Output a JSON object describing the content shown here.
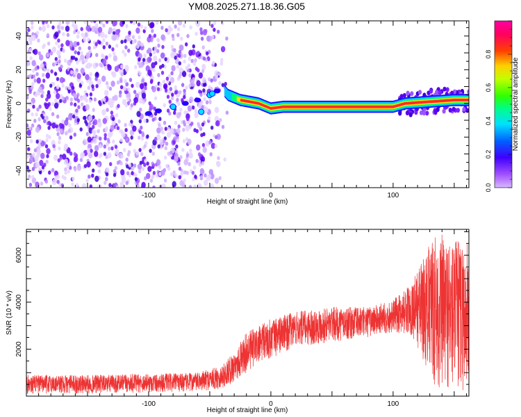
{
  "title": "YM08.2025.271.18.36.G05",
  "chart_data": [
    {
      "type": "heatmap",
      "title": "YM08.2025.271.18.36.G05",
      "xlabel": "Height of straight line (km)",
      "ylabel": "Frequency (Hz)",
      "xlim": [
        -200,
        162
      ],
      "ylim": [
        -50,
        49
      ],
      "xticks": [
        -100,
        0,
        100
      ],
      "yticks": [
        -40,
        -20,
        0,
        20,
        40
      ],
      "colorbar": {
        "label": "Normalized spectral amplitude",
        "range": [
          0.0,
          1.0
        ],
        "ticks": [
          0.0,
          0.2,
          0.4,
          0.6,
          0.8
        ],
        "colormap": "rainbow (purple-blue-cyan-green-yellow-red-magenta)"
      },
      "ridge": [
        {
          "x": -100,
          "y": -6
        },
        {
          "x": -80,
          "y": -2
        },
        {
          "x": -60,
          "y": 2
        },
        {
          "x": -50,
          "y": 5
        },
        {
          "x": -40,
          "y": 9
        },
        {
          "x": -35,
          "y": 5
        },
        {
          "x": -25,
          "y": 2
        },
        {
          "x": -10,
          "y": 0
        },
        {
          "x": 0,
          "y": -3
        },
        {
          "x": 10,
          "y": -2
        },
        {
          "x": 50,
          "y": -2
        },
        {
          "x": 100,
          "y": -2
        },
        {
          "x": 110,
          "y": 0
        },
        {
          "x": 130,
          "y": 1
        },
        {
          "x": 150,
          "y": 2
        },
        {
          "x": 162,
          "y": 2
        }
      ]
    },
    {
      "type": "line",
      "xlabel": "Height of straight line (km)",
      "ylabel": "SNR (10 * v/v)",
      "xlim": [
        -200,
        162
      ],
      "ylim": [
        0,
        7100
      ],
      "xticks": [
        -100,
        0,
        100
      ],
      "yticks": [
        2000,
        4000,
        6000
      ],
      "color": "#ee3333",
      "envelope": [
        {
          "x": -200,
          "lo": 100,
          "hi": 900
        },
        {
          "x": -150,
          "lo": 100,
          "hi": 900
        },
        {
          "x": -100,
          "lo": 150,
          "hi": 950
        },
        {
          "x": -60,
          "lo": 200,
          "hi": 1000
        },
        {
          "x": -40,
          "lo": 300,
          "hi": 1300
        },
        {
          "x": -30,
          "lo": 600,
          "hi": 1900
        },
        {
          "x": -20,
          "lo": 1000,
          "hi": 2700
        },
        {
          "x": 0,
          "lo": 1600,
          "hi": 3300
        },
        {
          "x": 20,
          "lo": 2100,
          "hi": 3600
        },
        {
          "x": 50,
          "lo": 2300,
          "hi": 3800
        },
        {
          "x": 80,
          "lo": 2500,
          "hi": 3800
        },
        {
          "x": 100,
          "lo": 2700,
          "hi": 4100
        },
        {
          "x": 115,
          "lo": 2600,
          "hi": 4800
        },
        {
          "x": 125,
          "lo": 1500,
          "hi": 6000
        },
        {
          "x": 135,
          "lo": 300,
          "hi": 7000
        },
        {
          "x": 162,
          "lo": 200,
          "hi": 6600
        }
      ]
    }
  ]
}
